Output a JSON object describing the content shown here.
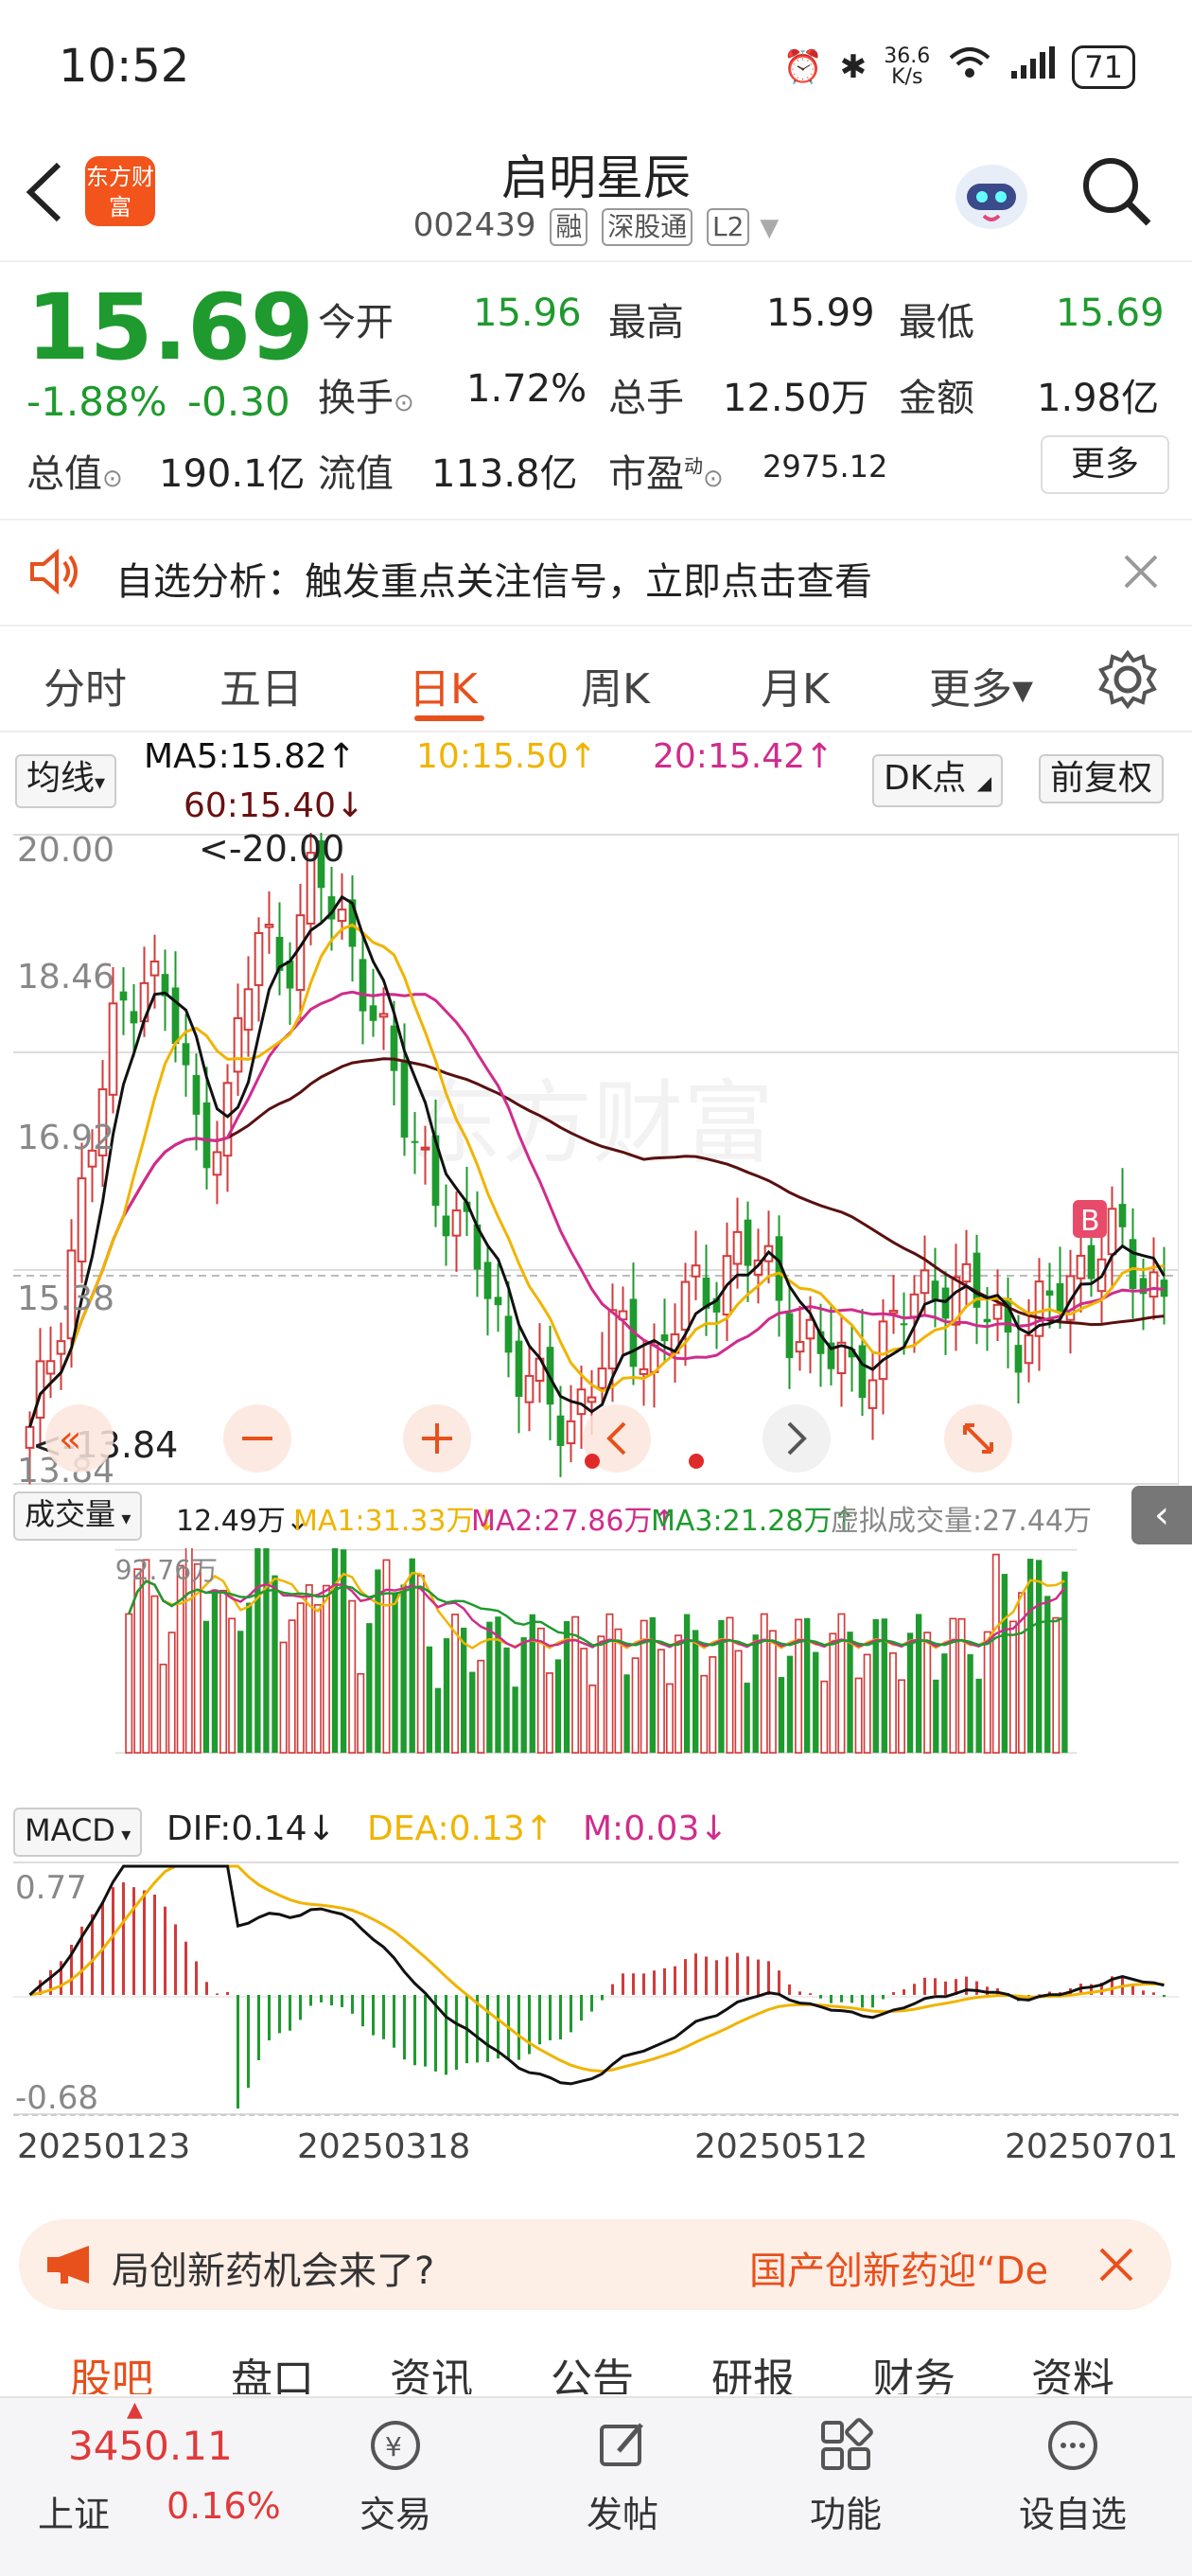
{
  "status": {
    "time": "10:52",
    "net_speed_top": "36.6",
    "net_speed_unit": "K/s",
    "battery": "71"
  },
  "header": {
    "title": "启明星辰",
    "code": "002439",
    "tags": [
      "融",
      "深股通",
      "L2"
    ],
    "logo_text": "东方财富"
  },
  "quote": {
    "price": "15.69",
    "change_pct": "-1.88%",
    "change": "-0.30",
    "open_label": "今开",
    "open": "15.96",
    "high_label": "最高",
    "high": "15.99",
    "low_label": "最低",
    "low": "15.69",
    "turnover_label": "换手",
    "turnover": "1.72%",
    "volume_label": "总手",
    "volume": "12.50万",
    "amount_label": "金额",
    "amount": "1.98亿",
    "mktcap_label": "总值",
    "mktcap": "190.1亿",
    "float_label": "流值",
    "float": "113.8亿",
    "pe_label": "市盈",
    "pe_sup": "动",
    "pe": "2975.12",
    "more_button": "更多"
  },
  "notice": {
    "text": "自选分析：触发重点关注信号，立即点击查看"
  },
  "tabs": [
    "分时",
    "五日",
    "日K",
    "周K",
    "月K",
    "更多▾"
  ],
  "active_tab": "日K",
  "ma_bar": {
    "selector": "均线",
    "ma5": "MA5:15.82↑",
    "ma10": "10:15.50↑",
    "ma20": "20:15.42↑",
    "ma60": "60:15.40↓",
    "dk": "DK点",
    "fq": "前复权"
  },
  "kline": {
    "y_labels": [
      "20.00",
      "18.46",
      "16.92",
      "15.38",
      "13.84"
    ],
    "high_note": "<-20.00",
    "low_note": "<-13.84",
    "watermark": "东方财富"
  },
  "volume_bar": {
    "selector": "成交量",
    "vol": "12.49万↓",
    "ma1": "MA1:31.33万↓",
    "ma2": "MA2:27.86万↑",
    "ma3": "MA3:21.28万↑",
    "virtual": "虚拟成交量:27.44万",
    "top_label": "92.76万"
  },
  "macd_bar": {
    "selector": "MACD",
    "dif": "DIF:0.14↓",
    "dea": "DEA:0.13↑",
    "m": "M:0.03↓",
    "top_label": "0.77",
    "bottom_label": "-0.68"
  },
  "dates": [
    "20250123",
    "20250318",
    "20250512",
    "20250701"
  ],
  "promo": {
    "left": "局创新药机会来了?",
    "right": "国产创新药迎“De"
  },
  "subtabs": [
    "股吧",
    "盘口",
    "资讯",
    "公告",
    "研报",
    "财务",
    "资料"
  ],
  "bottom_nav": {
    "index_value": "3450.11",
    "index_name": "上证",
    "index_pct": "0.16%",
    "items": [
      "交易",
      "发帖",
      "功能",
      "设自选"
    ]
  },
  "colors": {
    "up": "#d23b3b",
    "down": "#1f9a2e",
    "accent": "#e8501c",
    "ma5": "#111111",
    "ma10": "#f0b400",
    "ma20": "#d02c8c",
    "ma60": "#5a1010"
  },
  "chart_data": {
    "type": "candlestick",
    "dates": [
      "20250123",
      "20250318",
      "20250512",
      "20250701"
    ],
    "ylim": [
      13.84,
      20.0
    ],
    "close_series": [
      14.2,
      15.4,
      16.8,
      18.2,
      18.8,
      18.3,
      17.0,
      17.5,
      19.1,
      18.8,
      19.6,
      19.2,
      18.5,
      17.4,
      16.9,
      16.2,
      15.9,
      15.0,
      14.6,
      14.4,
      14.9,
      15.3,
      15.0,
      15.5,
      15.7,
      16.1,
      15.8,
      15.3,
      15.0,
      14.9,
      15.1,
      15.5,
      15.8,
      15.6,
      15.4,
      15.2,
      15.5,
      15.9,
      16.2,
      15.8,
      15.7
    ],
    "macd_range": [
      -0.68,
      0.77
    ]
  }
}
